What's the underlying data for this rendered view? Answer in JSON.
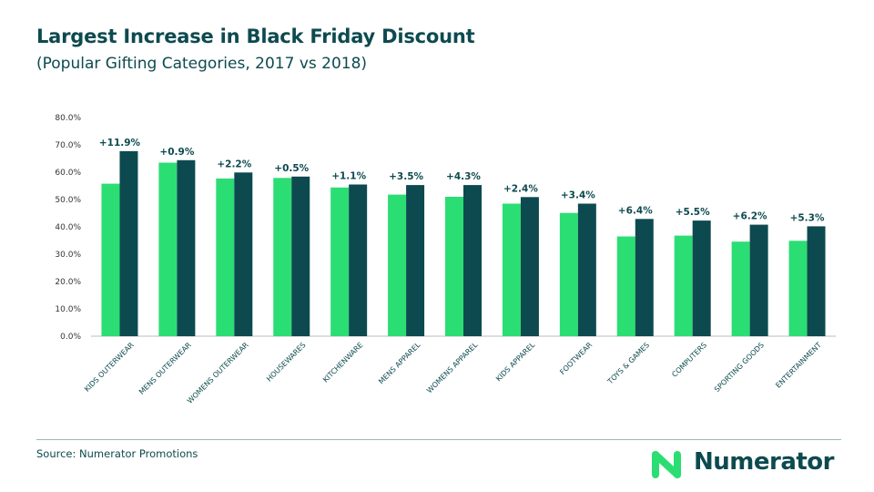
{
  "header": {
    "title": "Largest Increase in Black Friday Discount",
    "subtitle": "(Popular Gifting Categories, 2017 vs 2018)"
  },
  "footer": {
    "source": "Source: Numerator Promotions",
    "brand": "Numerator"
  },
  "colors": {
    "series_2017": "#2bde73",
    "series_2018": "#0d4a4f",
    "text": "#0d4a4f",
    "brand_accent": "#2bde73"
  },
  "chart_data": {
    "type": "bar",
    "categories": [
      "KIDS OUTERWEAR",
      "MENS OUTERWEAR",
      "WOMENS OUTERWEAR",
      "HOUSEWARES",
      "KITCHENWARE",
      "MENS APPAREL",
      "WOMENS APPAREL",
      "KIDS APPAREL",
      "FOOTWEAR",
      "TOYS & GAMES",
      "COMPUTERS",
      "SPORTING GOODS",
      "ENTERTAINMENT"
    ],
    "series": [
      {
        "values": [
          55.8,
          63.5,
          57.7,
          57.9,
          54.4,
          51.8,
          51.0,
          48.5,
          45.1,
          36.5,
          36.8,
          34.6,
          34.9
        ]
      },
      {
        "values": [
          67.7,
          64.4,
          59.9,
          58.4,
          55.5,
          55.3,
          55.3,
          50.9,
          48.5,
          42.9,
          42.3,
          40.8,
          40.2
        ]
      }
    ],
    "data_labels": [
      "+11.9%",
      "+0.9%",
      "+2.2%",
      "+0.5%",
      "+1.1%",
      "+3.5%",
      "+4.3%",
      "+2.4%",
      "+3.4%",
      "+6.4%",
      "+5.5%",
      "+6.2%",
      "+5.3%"
    ],
    "yticks": [
      "0.0%",
      "10.0%",
      "20.0%",
      "30.0%",
      "40.0%",
      "50.0%",
      "60.0%",
      "70.0%",
      "80.0%"
    ],
    "ylim": [
      0,
      80
    ],
    "xlabel": "",
    "ylabel": "",
    "grid": false,
    "legend": "none"
  }
}
